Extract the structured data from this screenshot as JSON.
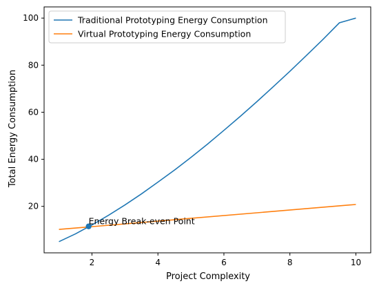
{
  "chart_data": {
    "type": "line",
    "xlabel": "Project Complexity",
    "ylabel": "Total Energy Consumption",
    "xlim": [
      0.55,
      10.45
    ],
    "ylim": [
      0.25,
      104.75
    ],
    "xticks": [
      2,
      4,
      6,
      8,
      10
    ],
    "yticks": [
      20,
      40,
      60,
      80,
      100
    ],
    "grid": false,
    "legend_position": "upper-left",
    "series": [
      {
        "name": "Traditional Prototyping Energy Consumption",
        "color": "#1f77b4",
        "x": [
          1,
          1.5,
          2,
          2.5,
          3,
          3.5,
          4,
          4.5,
          5,
          5.5,
          6,
          6.5,
          7,
          7.5,
          8,
          8.5,
          9,
          9.5,
          10
        ],
        "y": [
          5,
          8.3,
          12.1,
          16.2,
          20.6,
          25.3,
          30.3,
          35.4,
          40.8,
          46.4,
          52.3,
          58.3,
          64.5,
          70.9,
          77.4,
          84.1,
          90.9,
          98,
          100
        ]
      },
      {
        "name": "Virtual Prototyping Energy Consumption",
        "color": "#ff7f0e",
        "x": [
          1,
          10
        ],
        "y": [
          10.2,
          20.8
        ]
      }
    ],
    "annotations": [
      {
        "text": "Energy Break-even Point",
        "x": 1.9,
        "y": 11.5,
        "marker_color": "#1f77b4"
      }
    ]
  }
}
